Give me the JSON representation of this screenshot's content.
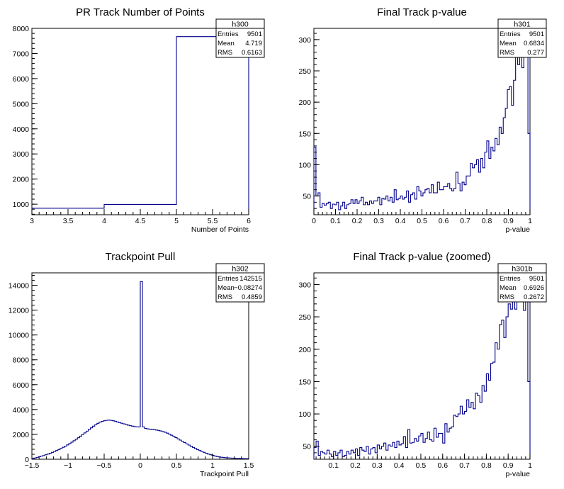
{
  "chart_data": [
    {
      "id": "h300",
      "type": "histogram",
      "title": "PR Track Number of Points",
      "xlabel": "Number of Points",
      "ylabel": "",
      "xlim": [
        3,
        6
      ],
      "ylim": [
        580,
        8000
      ],
      "x_ticks": [
        3,
        3.5,
        4,
        4.5,
        5,
        5.5,
        6
      ],
      "x_tick_labels": [
        "3",
        "3.5",
        "4",
        "4.5",
        "5",
        "5.5",
        "6"
      ],
      "y_ticks": [
        1000,
        2000,
        3000,
        4000,
        5000,
        6000,
        7000,
        8000
      ],
      "y_tick_labels": [
        "1000",
        "2000",
        "3000",
        "4000",
        "5000",
        "6000",
        "7000",
        "8000"
      ],
      "bin_edges": [
        3,
        4,
        5,
        6
      ],
      "values": [
        840,
        990,
        7670
      ],
      "stats": {
        "name": "h300",
        "rows": [
          {
            "label": "Entries",
            "value": "9501"
          },
          {
            "label": "Mean",
            "value": "4.719"
          },
          {
            "label": "RMS",
            "value": "0.6163"
          }
        ]
      },
      "line_color": "#00008b"
    },
    {
      "id": "h301",
      "type": "histogram",
      "title": "Final Track p-value",
      "xlabel": "p-value",
      "ylabel": "",
      "xlim": [
        0,
        1
      ],
      "ylim": [
        20,
        318
      ],
      "x_ticks": [
        0,
        0.1,
        0.2,
        0.3,
        0.4,
        0.5,
        0.6,
        0.7,
        0.8,
        0.9,
        1
      ],
      "x_tick_labels": [
        "0",
        "0.1",
        "0.2",
        "0.3",
        "0.4",
        "0.5",
        "0.6",
        "0.7",
        "0.8",
        "0.9",
        "1"
      ],
      "y_ticks": [
        50,
        100,
        150,
        200,
        250,
        300
      ],
      "y_tick_labels": [
        "50",
        "100",
        "150",
        "200",
        "250",
        "300"
      ],
      "bin_edges_range": [
        0,
        1
      ],
      "values": [
        128,
        50,
        55,
        32,
        38,
        35,
        38,
        40,
        30,
        37,
        36,
        40,
        28,
        34,
        40,
        30,
        36,
        38,
        44,
        38,
        44,
        38,
        42,
        48,
        36,
        40,
        36,
        42,
        38,
        42,
        42,
        48,
        36,
        46,
        45,
        50,
        42,
        48,
        40,
        60,
        44,
        46,
        50,
        45,
        48,
        58,
        40,
        52,
        55,
        45,
        65,
        58,
        50,
        55,
        60,
        62,
        55,
        68,
        55,
        55,
        72,
        60,
        60,
        65,
        65,
        70,
        62,
        58,
        62,
        88,
        70,
        58,
        72,
        68,
        82,
        82,
        102,
        95,
        100,
        108,
        88,
        110,
        95,
        120,
        138,
        110,
        128,
        122,
        142,
        132,
        160,
        150,
        175,
        190,
        220,
        225,
        195,
        235,
        285,
        260,
        275,
        255,
        285,
        310,
        150
      ],
      "stats": {
        "name": "h301",
        "rows": [
          {
            "label": "Entries",
            "value": "9501"
          },
          {
            "label": "Mean",
            "value": "0.6834"
          },
          {
            "label": "RMS",
            "value": "0.277"
          }
        ]
      },
      "line_color": "#00008b"
    },
    {
      "id": "h302",
      "type": "histogram",
      "title": "Trackpoint Pull",
      "xlabel": "Trackpoint Pull",
      "ylabel": "",
      "xlim": [
        -1.5,
        1.5
      ],
      "ylim": [
        0,
        15000
      ],
      "x_ticks": [
        -1.5,
        -1,
        -0.5,
        0,
        0.5,
        1,
        1.5
      ],
      "x_tick_labels": [
        "−1.5",
        "−1",
        "−0.5",
        "0",
        "0.5",
        "1",
        "1.5"
      ],
      "y_ticks": [
        0,
        2000,
        4000,
        6000,
        8000,
        10000,
        12000,
        14000
      ],
      "y_tick_labels": [
        "0",
        "2000",
        "4000",
        "6000",
        "8000",
        "10000",
        "12000",
        "14000"
      ],
      "bin_edges_range": [
        -1.5,
        1.5
      ],
      "values": [
        60,
        100,
        150,
        200,
        250,
        300,
        360,
        420,
        480,
        550,
        620,
        700,
        780,
        870,
        960,
        1050,
        1150,
        1260,
        1370,
        1490,
        1610,
        1730,
        1860,
        1990,
        2120,
        2260,
        2400,
        2530,
        2660,
        2780,
        2890,
        2980,
        3050,
        3100,
        3130,
        3150,
        3130,
        3100,
        3060,
        3000,
        2950,
        2900,
        2850,
        2800,
        2740,
        2700,
        2660,
        2630,
        2610,
        2600,
        14300,
        2600,
        2480,
        2440,
        2420,
        2400,
        2380,
        2350,
        2320,
        2280,
        2230,
        2170,
        2100,
        2020,
        1930,
        1840,
        1740,
        1640,
        1540,
        1440,
        1340,
        1240,
        1140,
        1040,
        950,
        860,
        780,
        700,
        620,
        550,
        480,
        420,
        360,
        310,
        260,
        220,
        190,
        160,
        140,
        120,
        110,
        100,
        90,
        80,
        70,
        65,
        60,
        55,
        50,
        45
      ],
      "stats": {
        "name": "h302",
        "rows": [
          {
            "label": "Entries",
            "value": "142515"
          },
          {
            "label": "Mean",
            "value": "−0.08274"
          },
          {
            "label": "RMS",
            "value": "0.4859"
          }
        ]
      },
      "line_color": "#00008b"
    },
    {
      "id": "h301b",
      "type": "histogram",
      "title": "Final Track p-value (zoomed)",
      "xlabel": "p-value",
      "ylabel": "",
      "xlim": [
        0.01,
        1
      ],
      "ylim": [
        30,
        318
      ],
      "x_ticks": [
        0.1,
        0.2,
        0.3,
        0.4,
        0.5,
        0.6,
        0.7,
        0.8,
        0.9,
        1
      ],
      "x_tick_labels": [
        "0.1",
        "0.2",
        "0.3",
        "0.4",
        "0.5",
        "0.6",
        "0.7",
        "0.8",
        "0.9",
        "1"
      ],
      "y_ticks": [
        50,
        100,
        150,
        200,
        250,
        300
      ],
      "y_tick_labels": [
        "50",
        "100",
        "150",
        "200",
        "250",
        "300"
      ],
      "bin_edges_range": [
        0.01,
        1
      ],
      "values": [
        48,
        58,
        36,
        42,
        40,
        38,
        44,
        38,
        34,
        42,
        36,
        40,
        44,
        34,
        36,
        42,
        38,
        44,
        40,
        46,
        36,
        48,
        44,
        42,
        50,
        38,
        46,
        48,
        40,
        52,
        46,
        50,
        55,
        44,
        52,
        50,
        56,
        48,
        58,
        52,
        54,
        65,
        48,
        76,
        55,
        56,
        62,
        58,
        66,
        70,
        56,
        62,
        72,
        60,
        58,
        78,
        64,
        70,
        70,
        55,
        85,
        72,
        78,
        80,
        98,
        96,
        100,
        112,
        100,
        104,
        122,
        110,
        118,
        108,
        132,
        128,
        118,
        144,
        135,
        162,
        152,
        178,
        180,
        210,
        200,
        238,
        245,
        218,
        250,
        270,
        262,
        285,
        262,
        290,
        282,
        310,
        260,
        300,
        150
      ],
      "stats": {
        "name": "h301b",
        "rows": [
          {
            "label": "Entries",
            "value": "9501"
          },
          {
            "label": "Mean",
            "value": "0.6926"
          },
          {
            "label": "RMS",
            "value": "0.2672"
          }
        ]
      },
      "line_color": "#00008b"
    }
  ]
}
